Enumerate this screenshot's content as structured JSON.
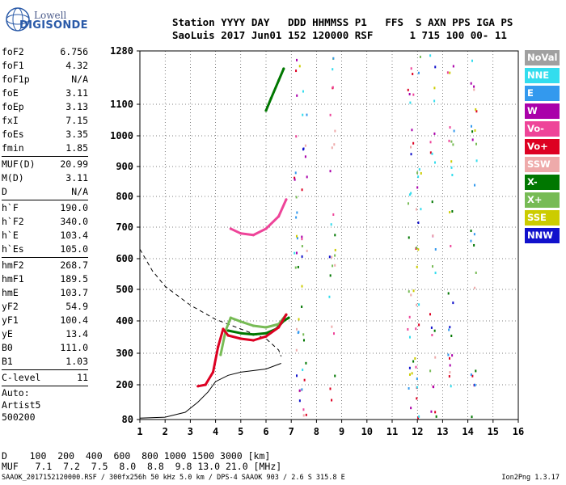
{
  "logo": {
    "line1": "Lowell",
    "line2": "DIGISONDE"
  },
  "header": {
    "labels": "Station YYYY DAY   DDD HHMMSS P1   FFS  S AXN PPS IGA PS",
    "values": "SaoLuis 2017 Jun01 152 120000 RSF      1 715 100 00- 11"
  },
  "params": {
    "group1": [
      {
        "label": "foF2",
        "value": "6.756"
      },
      {
        "label": "foF1",
        "value": "4.32"
      },
      {
        "label": "foF1p",
        "value": "N/A"
      },
      {
        "label": "foE",
        "value": "3.11"
      },
      {
        "label": "foEp",
        "value": "3.13"
      },
      {
        "label": "fxI",
        "value": "7.15"
      },
      {
        "label": "foEs",
        "value": "3.35"
      },
      {
        "label": "fmin",
        "value": "1.85"
      }
    ],
    "group2": [
      {
        "label": "MUF(D)",
        "value": "20.99"
      },
      {
        "label": "M(D)",
        "value": "3.11"
      },
      {
        "label": "D",
        "value": "N/A"
      }
    ],
    "group3": [
      {
        "label": "h`F",
        "value": "190.0"
      },
      {
        "label": "h`F2",
        "value": "340.0"
      },
      {
        "label": "h`E",
        "value": "103.4"
      },
      {
        "label": "h`Es",
        "value": "105.0"
      }
    ],
    "group4": [
      {
        "label": "hmF2",
        "value": "268.7"
      },
      {
        "label": "hmF1",
        "value": "189.5"
      },
      {
        "label": "hmE",
        "value": "103.7"
      },
      {
        "label": "yF2",
        "value": "54.9"
      },
      {
        "label": "yF1",
        "value": "100.4"
      },
      {
        "label": "yE",
        "value": "13.4"
      },
      {
        "label": "B0",
        "value": "111.0"
      },
      {
        "label": "B1",
        "value": "1.03"
      }
    ],
    "group5": [
      {
        "label": "C-level",
        "value": "11"
      }
    ],
    "tail": [
      "Auto:",
      "Artist5",
      "500200"
    ]
  },
  "legend": [
    {
      "label": "NoVal",
      "color": "#a0a0a0"
    },
    {
      "label": "NNE",
      "color": "#33ddee"
    },
    {
      "label": "E",
      "color": "#3399ee"
    },
    {
      "label": "W",
      "color": "#aa00aa"
    },
    {
      "label": "Vo-",
      "color": "#ee4499"
    },
    {
      "label": "Vo+",
      "color": "#dd0022"
    },
    {
      "label": "SSW",
      "color": "#eeaaaa"
    },
    {
      "label": "X-",
      "color": "#007700"
    },
    {
      "label": "X+",
      "color": "#77bb55"
    },
    {
      "label": "SSE",
      "color": "#cccc00"
    },
    {
      "label": "NNW",
      "color": "#1111cc"
    }
  ],
  "dmuf": {
    "d_row": "D    100  200  400  600  800 1000 1500 3000 [km]",
    "muf_row": "MUF   7.1  7.2  7.5  8.0  8.8  9.8 13.0 21.0 [MHz]"
  },
  "footer": "SAAOK_2017152120000.RSF / 300fx256h 50 kHz 5.0 km / DPS-4 SAAOK 903 / 2.6 S 315.8 E",
  "version": "Ion2Png 1.3.17",
  "chart_data": {
    "type": "scatter",
    "x_ticks": [
      "1",
      "2",
      "3",
      "4",
      "5",
      "6",
      "7",
      "8",
      "9",
      "10",
      "11",
      "12",
      "13",
      "14",
      "15",
      "16"
    ],
    "y_ticks": [
      "80",
      "200",
      "300",
      "400",
      "500",
      "600",
      "700",
      "800",
      "900",
      "1000",
      "1100",
      "1280"
    ],
    "xlim": [
      1,
      16
    ],
    "ylim": [
      80,
      1280
    ],
    "grid": true,
    "dashed_curve": [
      [
        1.0,
        630
      ],
      [
        1.5,
        560
      ],
      [
        2.0,
        510
      ],
      [
        3.0,
        450
      ],
      [
        4.0,
        405
      ],
      [
        5.0,
        375
      ],
      [
        6.0,
        345
      ],
      [
        6.5,
        310
      ],
      [
        6.6,
        290
      ]
    ],
    "profile_curve": [
      [
        1.0,
        85
      ],
      [
        2.0,
        88
      ],
      [
        2.8,
        105
      ],
      [
        3.3,
        140
      ],
      [
        3.7,
        175
      ],
      [
        4.0,
        210
      ],
      [
        4.5,
        230
      ],
      [
        5.0,
        240
      ],
      [
        6.0,
        250
      ],
      [
        6.6,
        268
      ]
    ],
    "traces": [
      {
        "name": "X-",
        "color": "#007700",
        "points": [
          [
            4.5,
            370
          ],
          [
            5.0,
            362
          ],
          [
            5.5,
            358
          ],
          [
            6.0,
            362
          ],
          [
            6.4,
            375
          ],
          [
            6.7,
            400
          ],
          [
            6.9,
            410
          ]
        ]
      },
      {
        "name": "X+",
        "color": "#77bb55",
        "points": [
          [
            4.2,
            295
          ],
          [
            4.4,
            370
          ],
          [
            4.6,
            410
          ],
          [
            5.0,
            398
          ],
          [
            5.5,
            385
          ],
          [
            6.0,
            380
          ],
          [
            6.5,
            390
          ],
          [
            6.8,
            420
          ]
        ]
      },
      {
        "name": "Vo+",
        "color": "#dd0022",
        "points": [
          [
            3.3,
            195
          ],
          [
            3.6,
            200
          ],
          [
            3.9,
            240
          ],
          [
            4.1,
            320
          ],
          [
            4.3,
            375
          ],
          [
            4.5,
            355
          ],
          [
            5.0,
            345
          ],
          [
            5.5,
            340
          ],
          [
            6.0,
            352
          ],
          [
            6.5,
            380
          ],
          [
            6.8,
            420
          ]
        ]
      },
      {
        "name": "Vo-",
        "color": "#ee4499",
        "points": [
          [
            4.6,
            695
          ],
          [
            5.0,
            680
          ],
          [
            5.5,
            675
          ],
          [
            6.0,
            695
          ],
          [
            6.5,
            735
          ],
          [
            6.8,
            790
          ]
        ]
      },
      {
        "name": "X- (F2 2nd hop)",
        "color": "#007700",
        "points": [
          [
            6.0,
            1080
          ],
          [
            6.2,
            1120
          ],
          [
            6.5,
            1180
          ],
          [
            6.7,
            1220
          ]
        ]
      }
    ]
  }
}
